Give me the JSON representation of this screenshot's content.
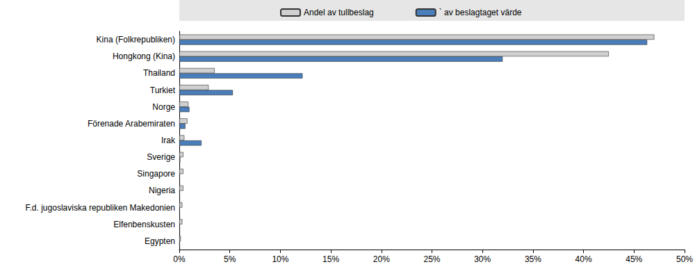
{
  "chart_data": {
    "type": "bar",
    "orientation": "horizontal",
    "categories": [
      "Kina (Folkrepubliken)",
      "Hongkong (Kina)",
      "Thailand",
      "Turkiet",
      "Norge",
      "Förenade Arabemiraten",
      "Irak",
      "Sverige",
      "Singapore",
      "Nigeria",
      "F.d. jugoslaviska republiken Makedonien",
      "Elfenbenskusten",
      "Egypten"
    ],
    "series": [
      {
        "name": "Andel av tullbeslag",
        "color": "#d0d0d0",
        "values": [
          47,
          42.5,
          3.5,
          2.9,
          0.9,
          0.8,
          0.5,
          0.4,
          0.4,
          0.4,
          0.3,
          0.3,
          0.15
        ]
      },
      {
        "name": "` av beslagtaget värde",
        "color": "#4a7ebb",
        "values": [
          46.3,
          32,
          12.2,
          5.3,
          1.0,
          0.6,
          2.2,
          0.1,
          0.05,
          0.05,
          0.05,
          0.05,
          0.05
        ]
      }
    ],
    "xlim": [
      0,
      50
    ],
    "xticks": [
      {
        "value": 0,
        "label": "0%"
      },
      {
        "value": 5,
        "label": "5%"
      },
      {
        "value": 10,
        "label": "10%"
      },
      {
        "value": 15,
        "label": "15%"
      },
      {
        "value": 20,
        "label": "20%"
      },
      {
        "value": 25,
        "label": "25%"
      },
      {
        "value": 30,
        "label": "30%"
      },
      {
        "value": 35,
        "label": "35%"
      },
      {
        "value": 40,
        "label": "40%"
      },
      {
        "value": 45,
        "label": "45%"
      },
      {
        "value": 50,
        "label": "50%"
      }
    ],
    "grid": false,
    "legend": "top"
  }
}
